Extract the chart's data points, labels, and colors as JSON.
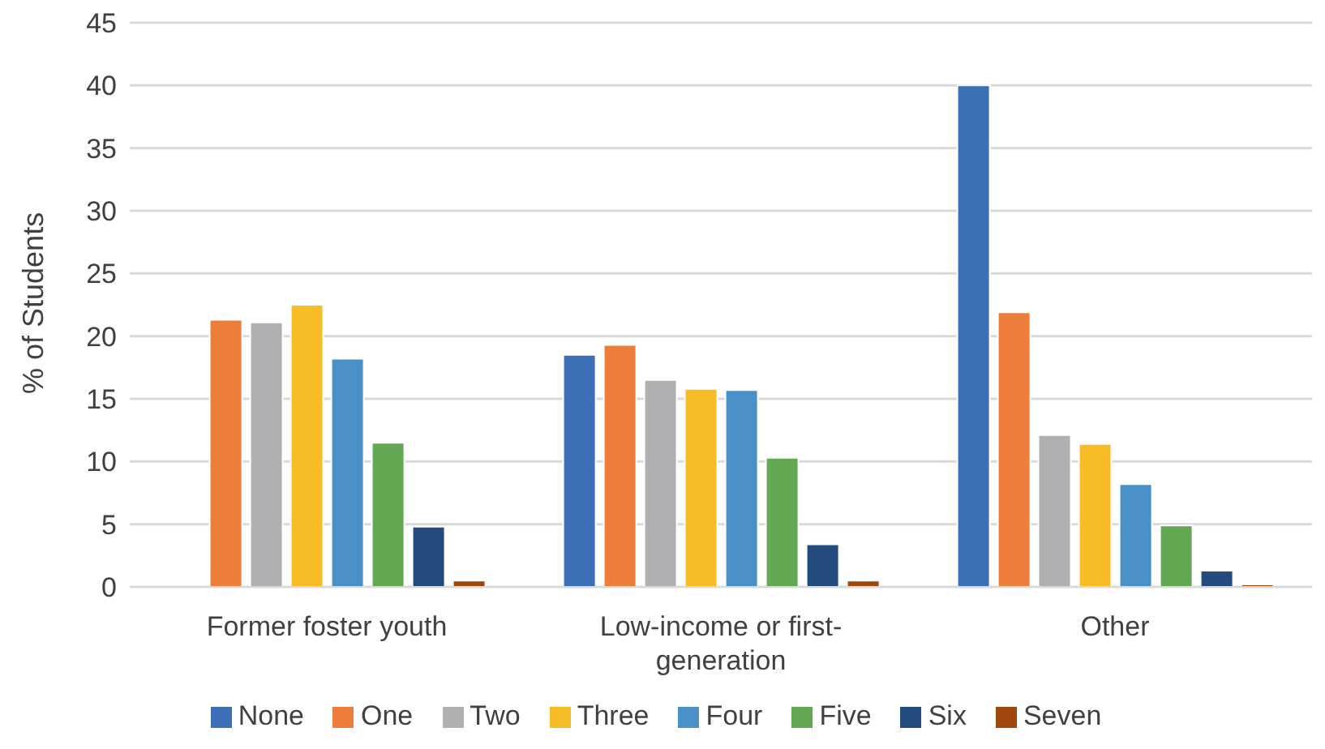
{
  "chart_data": {
    "type": "bar",
    "ylabel": "% of Students",
    "categories": [
      "Former foster youth",
      "Low-income or first-generation",
      "Other"
    ],
    "series": [
      {
        "name": "None",
        "color": "#3d6fb6",
        "values": [
          0,
          18.5,
          40
        ]
      },
      {
        "name": "One",
        "color": "#ed7d3a",
        "values": [
          21.3,
          19.3,
          21.9
        ]
      },
      {
        "name": "Two",
        "color": "#b0b0b3",
        "values": [
          21.1,
          16.5,
          12.1
        ]
      },
      {
        "name": "Three",
        "color": "#f8bc26",
        "values": [
          22.5,
          15.8,
          11.4
        ]
      },
      {
        "name": "Four",
        "color": "#4a90c8",
        "values": [
          18.2,
          15.7,
          8.2
        ]
      },
      {
        "name": "Five",
        "color": "#62a853",
        "values": [
          11.5,
          10.3,
          4.9
        ]
      },
      {
        "name": "Six",
        "color": "#234b7e",
        "values": [
          4.8,
          3.4,
          1.3
        ]
      },
      {
        "name": "Seven",
        "color": "#9e480e",
        "values": [
          0.5,
          0.5,
          0.2
        ]
      }
    ],
    "ylim": [
      0,
      45
    ],
    "yticks": [
      0,
      5,
      10,
      15,
      20,
      25,
      30,
      35,
      40,
      45
    ],
    "grid": "y",
    "legend": "bottom"
  }
}
